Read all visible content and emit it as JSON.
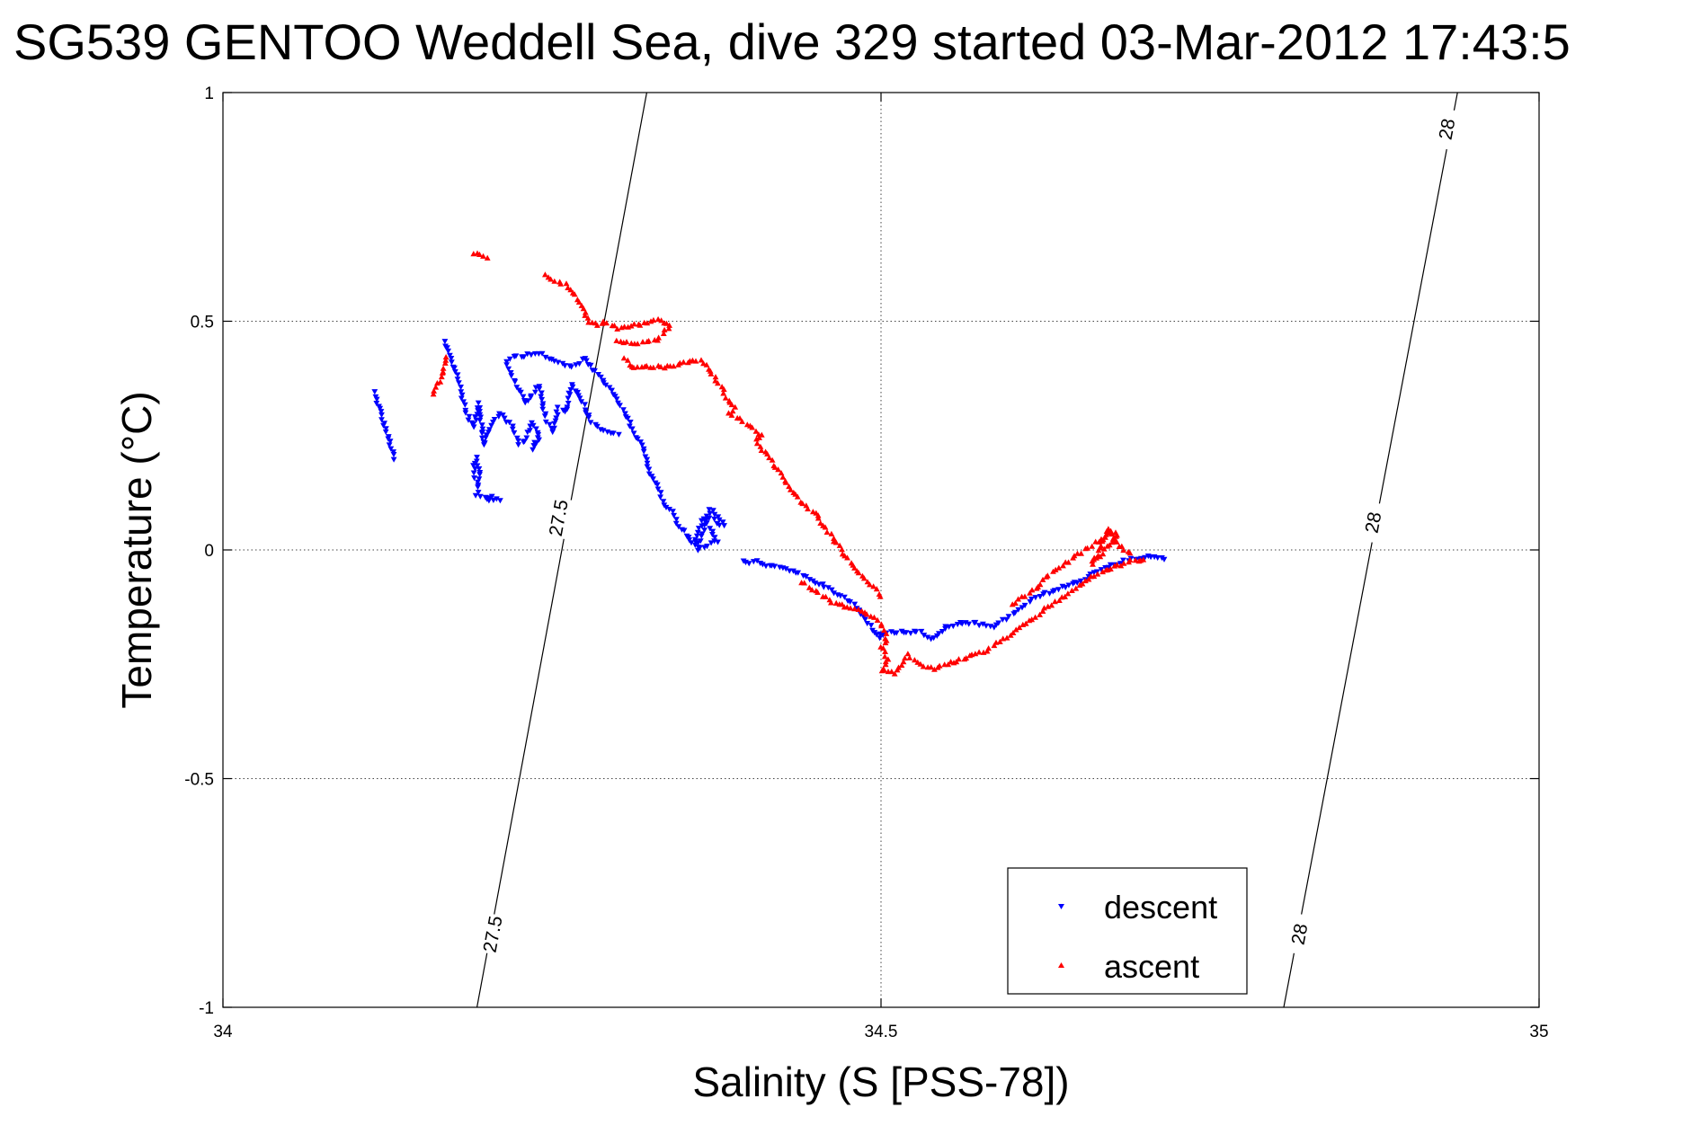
{
  "chart_data": {
    "type": "scatter",
    "title": "SG539 GENTOO Weddell Sea, dive 329 started 03-Mar-2012 17:43:5",
    "xlabel": "Salinity (S [PSS-78])",
    "ylabel": "Temperature (°C)",
    "xlim": [
      34,
      35
    ],
    "ylim": [
      -1,
      1
    ],
    "xticks": [
      34,
      34.5,
      35
    ],
    "xtick_labels": [
      "34",
      "34.5",
      "35"
    ],
    "yticks": [
      -1,
      -0.5,
      0,
      0.5,
      1
    ],
    "ytick_labels": [
      "-1",
      "-0.5",
      "0",
      "0.5",
      "1"
    ],
    "grid": true,
    "legend_position": "bottom-right",
    "density_contours": [
      {
        "label": "27.5",
        "x_at_ymin": 34.193,
        "x_at_ymax": 34.322,
        "label_positions": [
          [
            34.205,
            -0.84
          ],
          [
            34.255,
            0.07
          ]
        ]
      },
      {
        "label": "28",
        "x_at_ymin": 34.806,
        "x_at_ymax": 34.938,
        "label_positions": [
          [
            34.818,
            -0.84
          ],
          [
            34.874,
            0.06
          ],
          [
            34.93,
            0.92
          ]
        ]
      }
    ],
    "series": [
      {
        "name": "descent",
        "color": "#0000ff",
        "marker": "triangle-down",
        "segments": [
          [
            [
              34.115,
              0.345
            ],
            [
              34.125,
              0.25
            ],
            [
              34.13,
              0.2
            ]
          ],
          [
            [
              34.168,
              0.455
            ],
            [
              34.178,
              0.38
            ],
            [
              34.185,
              0.3
            ],
            [
              34.19,
              0.27
            ],
            [
              34.195,
              0.32
            ],
            [
              34.198,
              0.23
            ],
            [
              34.2,
              0.25
            ],
            [
              34.21,
              0.3
            ],
            [
              34.22,
              0.27
            ],
            [
              34.225,
              0.23
            ],
            [
              34.23,
              0.24
            ],
            [
              34.235,
              0.28
            ],
            [
              34.24,
              0.25
            ],
            [
              34.235,
              0.22
            ],
            [
              34.24,
              0.24
            ]
          ],
          [
            [
              34.19,
              0.16
            ],
            [
              34.192,
              0.2
            ],
            [
              34.195,
              0.18
            ],
            [
              34.193,
              0.12
            ],
            [
              34.205,
              0.115
            ],
            [
              34.2,
              0.11
            ],
            [
              34.21,
              0.11
            ]
          ],
          [
            [
              34.215,
              0.41
            ],
            [
              34.22,
              0.38
            ],
            [
              34.23,
              0.32
            ],
            [
              34.24,
              0.36
            ],
            [
              34.245,
              0.29
            ],
            [
              34.25,
              0.26
            ],
            [
              34.255,
              0.31
            ],
            [
              34.26,
              0.3
            ],
            [
              34.265,
              0.36
            ],
            [
              34.272,
              0.33
            ],
            [
              34.28,
              0.28
            ],
            [
              34.29,
              0.26
            ],
            [
              34.3,
              0.25
            ]
          ],
          [
            [
              34.218,
              0.42
            ],
            [
              34.24,
              0.43
            ],
            [
              34.255,
              0.41
            ],
            [
              34.265,
              0.4
            ],
            [
              34.275,
              0.42
            ],
            [
              34.288,
              0.37
            ],
            [
              34.295,
              0.35
            ],
            [
              34.3,
              0.32
            ],
            [
              34.305,
              0.3
            ],
            [
              34.31,
              0.27
            ],
            [
              34.315,
              0.24
            ],
            [
              34.32,
              0.22
            ],
            [
              34.322,
              0.2
            ],
            [
              34.325,
              0.16
            ],
            [
              34.33,
              0.14
            ],
            [
              34.335,
              0.1
            ],
            [
              34.34,
              0.09
            ],
            [
              34.345,
              0.06
            ],
            [
              34.35,
              0.04
            ],
            [
              34.355,
              0.02
            ],
            [
              34.358,
              0.01
            ],
            [
              34.36,
              0.03
            ],
            [
              34.365,
              0.07
            ],
            [
              34.37,
              0.05
            ],
            [
              34.375,
              0.02
            ],
            [
              34.36,
              0.0
            ],
            [
              34.37,
              0.09
            ],
            [
              34.38,
              0.06
            ]
          ],
          [
            [
              34.37,
              0.07
            ],
            [
              34.375,
              0.06
            ],
            [
              34.378,
              0.055
            ],
            [
              34.38,
              0.055
            ]
          ],
          [
            [
              34.395,
              -0.025
            ],
            [
              34.4,
              -0.03
            ],
            [
              34.405,
              -0.025
            ],
            [
              34.41,
              -0.03
            ],
            [
              34.415,
              -0.035
            ],
            [
              34.42,
              -0.038
            ],
            [
              34.425,
              -0.04
            ],
            [
              34.43,
              -0.045
            ],
            [
              34.44,
              -0.055
            ],
            [
              34.45,
              -0.07
            ],
            [
              34.46,
              -0.085
            ],
            [
              34.47,
              -0.1
            ],
            [
              34.48,
              -0.12
            ],
            [
              34.485,
              -0.14
            ],
            [
              34.49,
              -0.16
            ],
            [
              34.495,
              -0.18
            ],
            [
              34.5,
              -0.19
            ]
          ],
          [
            [
              34.5,
              -0.185
            ],
            [
              34.51,
              -0.18
            ],
            [
              34.52,
              -0.18
            ],
            [
              34.53,
              -0.18
            ],
            [
              34.535,
              -0.19
            ],
            [
              34.54,
              -0.195
            ],
            [
              34.545,
              -0.185
            ],
            [
              34.55,
              -0.17
            ],
            [
              34.56,
              -0.16
            ],
            [
              34.57,
              -0.16
            ],
            [
              34.58,
              -0.165
            ],
            [
              34.585,
              -0.17
            ],
            [
              34.59,
              -0.16
            ],
            [
              34.6,
              -0.14
            ],
            [
              34.61,
              -0.12
            ],
            [
              34.62,
              -0.1
            ],
            [
              34.63,
              -0.09
            ],
            [
              34.64,
              -0.08
            ],
            [
              34.65,
              -0.07
            ],
            [
              34.66,
              -0.055
            ],
            [
              34.67,
              -0.04
            ],
            [
              34.68,
              -0.03
            ],
            [
              34.69,
              -0.02
            ],
            [
              34.7,
              -0.015
            ],
            [
              34.715,
              -0.02
            ]
          ]
        ]
      },
      {
        "name": "ascent",
        "color": "#ff0000",
        "marker": "triangle-up",
        "segments": [
          [
            [
              34.19,
              0.65
            ],
            [
              34.195,
              0.645
            ],
            [
              34.2,
              0.64
            ]
          ],
          [
            [
              34.245,
              0.6
            ],
            [
              34.26,
              0.58
            ],
            [
              34.27,
              0.55
            ],
            [
              34.275,
              0.52
            ],
            [
              34.278,
              0.5
            ],
            [
              34.285,
              0.49
            ],
            [
              34.29,
              0.5
            ],
            [
              34.3,
              0.485
            ],
            [
              34.31,
              0.49
            ],
            [
              34.32,
              0.495
            ],
            [
              34.325,
              0.5
            ],
            [
              34.33,
              0.505
            ],
            [
              34.34,
              0.49
            ],
            [
              34.33,
              0.46
            ],
            [
              34.31,
              0.45
            ],
            [
              34.3,
              0.46
            ]
          ],
          [
            [
              34.16,
              0.34
            ],
            [
              34.165,
              0.37
            ],
            [
              34.17,
              0.42
            ]
          ],
          [
            [
              34.305,
              0.42
            ],
            [
              34.31,
              0.4
            ],
            [
              34.32,
              0.4
            ],
            [
              34.33,
              0.4
            ],
            [
              34.34,
              0.4
            ],
            [
              34.35,
              0.41
            ],
            [
              34.36,
              0.415
            ],
            [
              34.365,
              0.41
            ],
            [
              34.37,
              0.39
            ],
            [
              34.375,
              0.37
            ],
            [
              34.38,
              0.35
            ],
            [
              34.385,
              0.32
            ],
            [
              34.39,
              0.31
            ],
            [
              34.385,
              0.3
            ],
            [
              34.39,
              0.29
            ],
            [
              34.4,
              0.27
            ],
            [
              34.405,
              0.26
            ],
            [
              34.41,
              0.25
            ],
            [
              34.405,
              0.24
            ],
            [
              34.41,
              0.22
            ],
            [
              34.415,
              0.2
            ],
            [
              34.42,
              0.18
            ],
            [
              34.425,
              0.16
            ],
            [
              34.43,
              0.14
            ],
            [
              34.435,
              0.12
            ],
            [
              34.44,
              0.1
            ],
            [
              34.445,
              0.09
            ],
            [
              34.45,
              0.08
            ],
            [
              34.455,
              0.06
            ],
            [
              34.46,
              0.04
            ],
            [
              34.465,
              0.02
            ],
            [
              34.47,
              0.0
            ],
            [
              34.475,
              -0.02
            ],
            [
              34.48,
              -0.04
            ],
            [
              34.49,
              -0.07
            ],
            [
              34.5,
              -0.1
            ]
          ],
          [
            [
              34.44,
              -0.07
            ],
            [
              34.45,
              -0.09
            ],
            [
              34.46,
              -0.11
            ],
            [
              34.47,
              -0.12
            ],
            [
              34.48,
              -0.13
            ],
            [
              34.49,
              -0.14
            ],
            [
              34.5,
              -0.16
            ],
            [
              34.505,
              -0.2
            ],
            [
              34.5,
              -0.21
            ],
            [
              34.505,
              -0.24
            ],
            [
              34.5,
              -0.265
            ],
            [
              34.51,
              -0.27
            ],
            [
              34.515,
              -0.25
            ],
            [
              34.52,
              -0.23
            ],
            [
              34.53,
              -0.25
            ],
            [
              34.54,
              -0.26
            ],
            [
              34.55,
              -0.25
            ],
            [
              34.56,
              -0.24
            ],
            [
              34.57,
              -0.23
            ],
            [
              34.58,
              -0.22
            ],
            [
              34.59,
              -0.2
            ],
            [
              34.6,
              -0.18
            ],
            [
              34.61,
              -0.16
            ],
            [
              34.62,
              -0.14
            ],
            [
              34.63,
              -0.12
            ],
            [
              34.64,
              -0.1
            ],
            [
              34.65,
              -0.08
            ],
            [
              34.66,
              -0.06
            ],
            [
              34.67,
              -0.045
            ],
            [
              34.68,
              -0.035
            ],
            [
              34.69,
              -0.025
            ],
            [
              34.7,
              -0.02
            ]
          ],
          [
            [
              34.6,
              -0.12
            ],
            [
              34.61,
              -0.1
            ],
            [
              34.62,
              -0.08
            ],
            [
              34.625,
              -0.06
            ],
            [
              34.63,
              -0.05
            ],
            [
              34.635,
              -0.04
            ],
            [
              34.64,
              -0.03
            ],
            [
              34.645,
              -0.02
            ],
            [
              34.65,
              -0.01
            ],
            [
              34.655,
              0.0
            ],
            [
              34.66,
              0.01
            ],
            [
              34.665,
              0.02
            ],
            [
              34.67,
              0.03
            ],
            [
              34.675,
              0.04
            ],
            [
              34.68,
              0.035
            ],
            [
              34.67,
              0.0
            ],
            [
              34.66,
              -0.03
            ],
            [
              34.668,
              0.01
            ],
            [
              34.672,
              0.045
            ],
            [
              34.678,
              0.02
            ],
            [
              34.685,
              0.0
            ],
            [
              34.69,
              -0.01
            ]
          ]
        ]
      }
    ]
  }
}
